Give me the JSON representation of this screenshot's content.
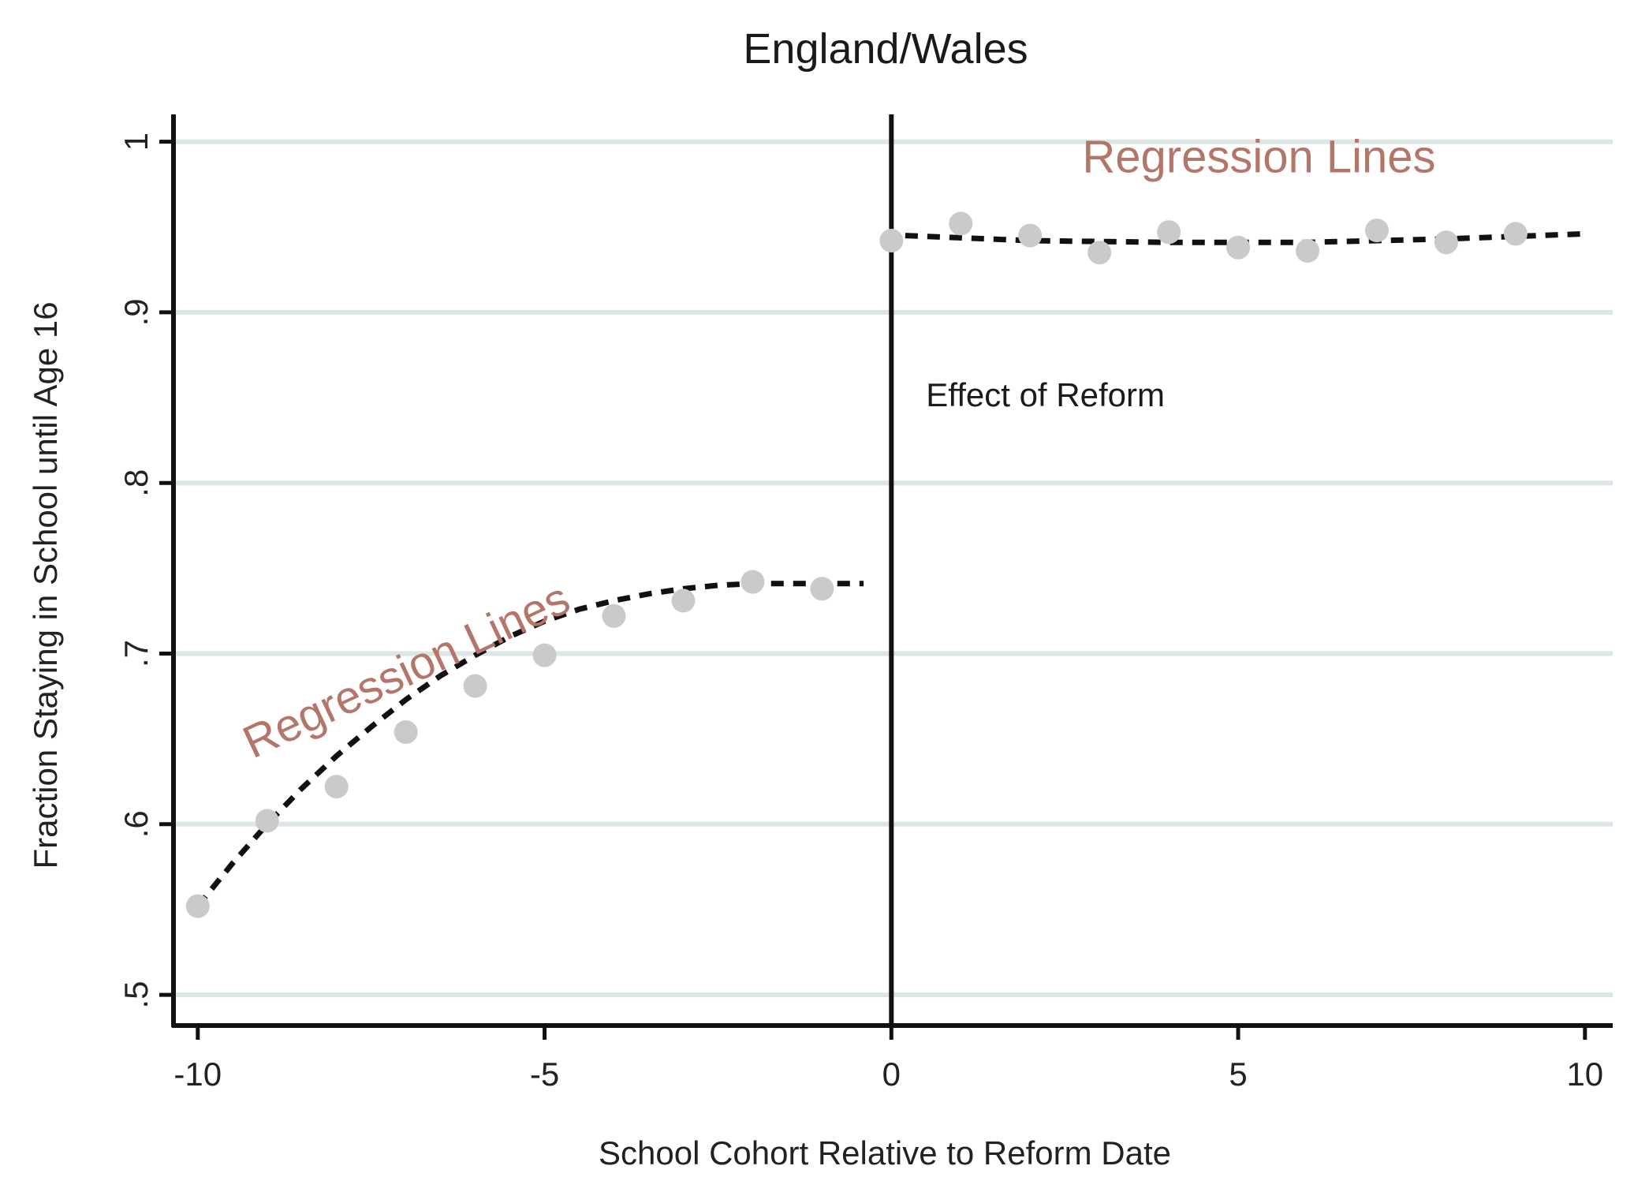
{
  "chart_data": {
    "type": "scatter",
    "title": "England/Wales",
    "xlabel": "School Cohort Relative to Reform Date",
    "ylabel": "Fraction Staying in School until Age 16",
    "xlim": [
      -10.35,
      10.4
    ],
    "ylim": [
      0.482,
      1.016
    ],
    "x_ticks": [
      -10,
      -5,
      0,
      5,
      10
    ],
    "x_tick_labels": [
      "-10",
      "-5",
      "0",
      "5",
      "10"
    ],
    "y_ticks": [
      0.5,
      0.6,
      0.7,
      0.8,
      0.9,
      1.0
    ],
    "y_tick_labels": [
      ".5",
      ".6",
      ".7",
      ".8",
      ".9",
      "1"
    ],
    "grid": "horizontal",
    "colors": {
      "points": "#c9cbc9",
      "grid": "#dde6e3",
      "regression": "#111111",
      "annotation": "#b5766a"
    },
    "series": [
      {
        "x": [
          -10,
          -9,
          -8,
          -7,
          -6,
          -5,
          -4,
          -3,
          -2,
          -1
        ],
        "y": [
          0.552,
          0.602,
          0.622,
          0.654,
          0.681,
          0.699,
          0.722,
          0.731,
          0.742,
          0.738
        ]
      },
      {
        "x": [
          0,
          1,
          2,
          3,
          4,
          5,
          6,
          7,
          8,
          9
        ],
        "y": [
          0.942,
          0.952,
          0.945,
          0.935,
          0.947,
          0.938,
          0.936,
          0.948,
          0.941,
          0.946
        ]
      }
    ],
    "regression_lines": [
      {
        "x": [
          -10,
          -9.5,
          -9,
          -8.5,
          -8,
          -7.5,
          -7,
          -6.5,
          -6,
          -5.5,
          -5,
          -4.5,
          -4,
          -3.5,
          -3,
          -2.5,
          -2,
          -1.5,
          -1,
          -0.4
        ],
        "y": [
          0.552,
          0.577,
          0.6,
          0.621,
          0.64,
          0.657,
          0.673,
          0.687,
          0.699,
          0.71,
          0.719,
          0.726,
          0.731,
          0.735,
          0.738,
          0.74,
          0.741,
          0.741,
          0.741,
          0.741
        ]
      },
      {
        "x": [
          0.2,
          2,
          4,
          6,
          8,
          10
        ],
        "y": [
          0.945,
          0.942,
          0.941,
          0.941,
          0.943,
          0.946
        ]
      }
    ],
    "cutoff": {
      "x": 0
    },
    "annotations": [
      {
        "text": "Regression Lines",
        "x": 5.3,
        "y": 0.982,
        "rotate": 0,
        "style": "red"
      },
      {
        "text": "Regression Lines",
        "x": -6.9,
        "y": 0.682,
        "rotate": -25,
        "style": "red"
      },
      {
        "text": "Effect of Reform",
        "x": 0.5,
        "y": 0.845,
        "rotate": 0,
        "style": "black"
      }
    ]
  }
}
